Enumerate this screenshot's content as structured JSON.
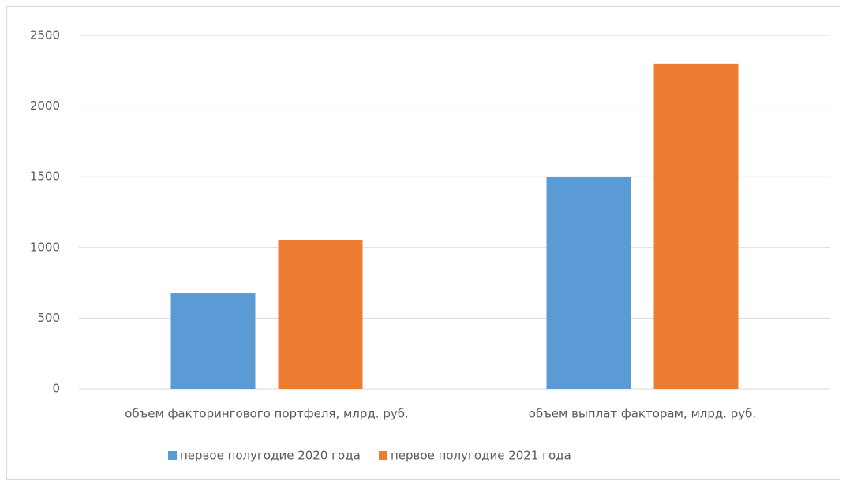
{
  "chart_data": {
    "type": "bar",
    "categories": [
      "объем факторингового портфеля, млрд. руб.",
      "объем выплат факторам, млрд. руб."
    ],
    "series": [
      {
        "name": "первое полугодие 2020 года",
        "color": "#5b9bd5",
        "values": [
          675,
          1500
        ]
      },
      {
        "name": "первое полугодие 2021 года",
        "color": "#ed7d31",
        "values": [
          1050,
          2300
        ]
      }
    ],
    "ylim": [
      0,
      2500
    ],
    "yticks": [
      0,
      500,
      1000,
      1500,
      2000,
      2500
    ],
    "grid": true,
    "legend": "bottom"
  }
}
